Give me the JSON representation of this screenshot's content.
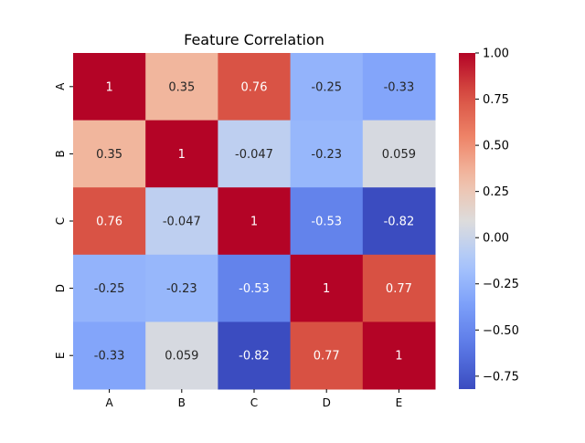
{
  "chart_data": {
    "type": "heatmap",
    "title": "Feature Correlation",
    "xlabel": "",
    "ylabel": "",
    "x_categories": [
      "A",
      "B",
      "C",
      "D",
      "E"
    ],
    "y_categories": [
      "A",
      "B",
      "C",
      "D",
      "E"
    ],
    "values": [
      [
        1,
        0.35,
        0.76,
        -0.25,
        -0.33
      ],
      [
        0.35,
        1,
        -0.047,
        -0.23,
        0.059
      ],
      [
        0.76,
        -0.047,
        1,
        -0.53,
        -0.82
      ],
      [
        -0.25,
        -0.23,
        -0.53,
        1,
        0.77
      ],
      [
        -0.33,
        0.059,
        -0.82,
        0.77,
        1
      ]
    ],
    "cell_labels": [
      [
        "1",
        "0.35",
        "0.76",
        "-0.25",
        "-0.33"
      ],
      [
        "0.35",
        "1",
        "-0.047",
        "-0.23",
        "0.059"
      ],
      [
        "0.76",
        "-0.047",
        "1",
        "-0.53",
        "-0.82"
      ],
      [
        "-0.25",
        "-0.23",
        "-0.53",
        "1",
        "0.77"
      ],
      [
        "-0.33",
        "0.059",
        "-0.82",
        "0.77",
        "1"
      ]
    ],
    "colormap": "coolwarm",
    "colorbar": {
      "range": [
        -0.82,
        1.0
      ],
      "ticks": [
        1.0,
        0.75,
        0.5,
        0.25,
        0.0,
        -0.25,
        -0.5,
        -0.75
      ],
      "tick_labels": [
        "1.00",
        "0.75",
        "0.50",
        "0.25",
        "0.00",
        "−0.25",
        "−0.50",
        "−0.75"
      ],
      "placement": "right"
    },
    "grid": false
  }
}
